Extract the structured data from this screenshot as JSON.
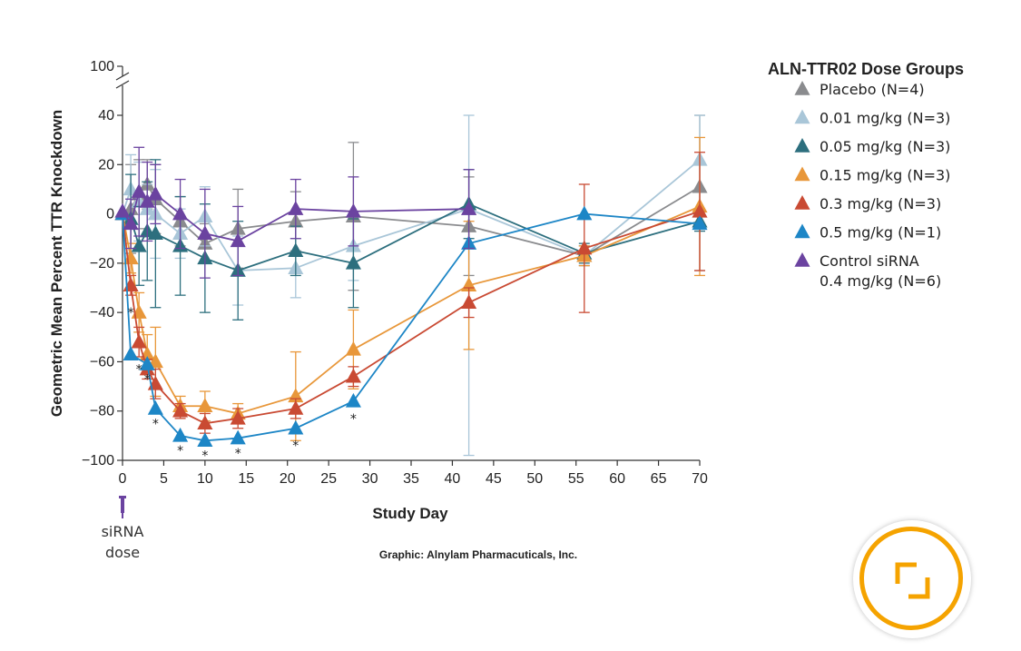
{
  "chart_data": {
    "type": "line",
    "ylabel": "Geometric Mean Percent TTR Knockdown",
    "xlabel": "Study Day",
    "xlim": [
      0,
      70
    ],
    "ylim": [
      -100,
      40
    ],
    "y_axis_break_top_label": "100",
    "xticks": [
      0,
      5,
      10,
      15,
      20,
      25,
      30,
      35,
      40,
      45,
      50,
      55,
      60,
      65,
      70
    ],
    "yticks": [
      -100,
      -80,
      -60,
      -40,
      -20,
      0,
      20,
      40
    ],
    "grid": false,
    "legend_title": "ALN-TTR02 Dose Groups",
    "legend_position": "right",
    "dose_marker_label": [
      "siRNA",
      "dose"
    ],
    "credit": "Graphic: Alnylam Pharmacuticals, Inc.",
    "series": [
      {
        "name": "Placebo (N=4)",
        "color": "#8a8b8e",
        "x": [
          0,
          1,
          2,
          3,
          4,
          7,
          10,
          14,
          21,
          28,
          42,
          56,
          70
        ],
        "y": [
          0,
          2,
          8,
          12,
          6,
          -3,
          -12,
          -6,
          -3,
          -1,
          -5,
          -17,
          11
        ],
        "err": [
          0,
          18,
          14,
          10,
          14,
          10,
          8,
          16,
          12,
          30,
          20,
          4,
          34
        ]
      },
      {
        "name": "0.01 mg/kg (N=3)",
        "color": "#a9c6d8",
        "x": [
          0,
          1,
          2,
          3,
          4,
          7,
          10,
          14,
          21,
          28,
          42,
          56,
          70
        ],
        "y": [
          0,
          10,
          5,
          2,
          0,
          -8,
          -1,
          -23,
          -22,
          -13,
          2,
          -17,
          22
        ],
        "err": [
          0,
          14,
          16,
          10,
          18,
          10,
          12,
          14,
          12,
          14,
          100,
          4,
          22
        ]
      },
      {
        "name": "0.05 mg/kg (N=3)",
        "color": "#2d6f7e",
        "x": [
          0,
          1,
          2,
          3,
          4,
          7,
          10,
          14,
          21,
          28,
          42,
          56,
          70
        ],
        "y": [
          0,
          -2,
          -13,
          -7,
          -8,
          -13,
          -18,
          -23,
          -15,
          -20,
          4,
          -16,
          -3
        ],
        "err": [
          0,
          18,
          16,
          20,
          30,
          20,
          22,
          20,
          10,
          18,
          14,
          4,
          4
        ]
      },
      {
        "name": "0.15 mg/kg (N=3)",
        "color": "#e8973a",
        "x": [
          0,
          1,
          2,
          3,
          4,
          7,
          10,
          14,
          21,
          28,
          42,
          56,
          70
        ],
        "y": [
          0,
          -18,
          -40,
          -57,
          -60,
          -78,
          -78,
          -81,
          -74,
          -55,
          -29,
          -17,
          3
        ],
        "err": [
          0,
          6,
          8,
          8,
          14,
          4,
          6,
          4,
          18,
          16,
          26,
          4,
          28
        ]
      },
      {
        "name": "0.3 mg/kg (N=3)",
        "color": "#c94a33",
        "x": [
          0,
          1,
          2,
          3,
          4,
          7,
          10,
          14,
          21,
          28,
          42,
          56,
          70
        ],
        "y": [
          0,
          -29,
          -52,
          -63,
          -69,
          -80,
          -85,
          -83,
          -79,
          -66,
          -36,
          -14,
          1
        ],
        "err": [
          0,
          4,
          6,
          4,
          6,
          3,
          4,
          4,
          4,
          4,
          6,
          26,
          24
        ]
      },
      {
        "name": "0.5 mg/kg (N=1)",
        "color": "#1d86c6",
        "x": [
          0,
          1,
          3,
          4,
          7,
          10,
          14,
          21,
          28,
          42,
          56,
          70
        ],
        "y": [
          0,
          -57,
          -61,
          -79,
          -90,
          -92,
          -91,
          -87,
          -76,
          -12,
          0,
          -4
        ],
        "err": []
      },
      {
        "name": "Control siRNA",
        "name_line2": "0.4 mg/kg (N=6)",
        "color": "#6b43a0",
        "x": [
          0,
          1,
          2,
          3,
          4,
          7,
          10,
          14,
          21,
          28,
          42
        ],
        "y": [
          1,
          -4,
          9,
          5,
          8,
          0,
          -8,
          -11,
          2,
          1,
          2
        ],
        "err": [
          0,
          10,
          18,
          16,
          12,
          14,
          18,
          14,
          12,
          14,
          16
        ]
      }
    ],
    "significance_markers": [
      {
        "x": 1,
        "y": -40,
        "label": "*"
      },
      {
        "x": 2,
        "y": -63,
        "label": "*"
      },
      {
        "x": 3,
        "y": -67,
        "label": "*"
      },
      {
        "x": 4,
        "y": -85,
        "label": "*"
      },
      {
        "x": 7,
        "y": -96,
        "label": "*"
      },
      {
        "x": 10,
        "y": -98,
        "label": "*"
      },
      {
        "x": 14,
        "y": -97,
        "label": "*"
      },
      {
        "x": 21,
        "y": -94,
        "label": "*"
      },
      {
        "x": 28,
        "y": -83,
        "label": "*"
      }
    ]
  },
  "controls": {
    "expand_icon": "expand-icon",
    "accent_color": "#f5a300"
  }
}
